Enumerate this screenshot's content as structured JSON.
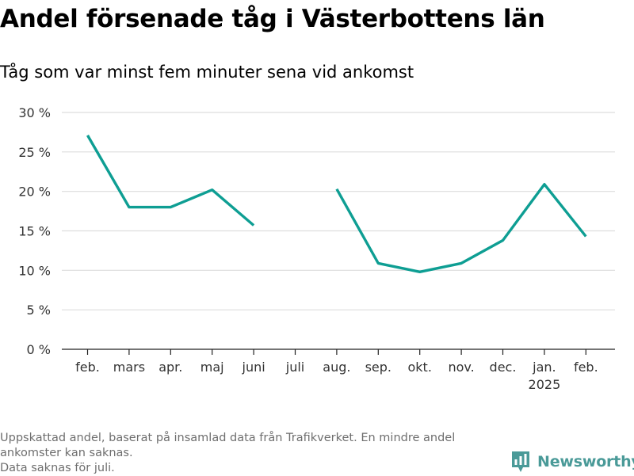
{
  "title": "Andel försenade tåg i Västerbottens län",
  "subtitle": "Tåg som var minst fem minuter sena vid ankomst",
  "footnote": {
    "line1": "Uppskattad andel, baserat på insamlad data från Trafikverket. En mindre andel",
    "line2": "ankomster kan saknas.",
    "line3": "Data saknas för juli."
  },
  "brand": {
    "name": "Newsworthy",
    "icon": "newsworthy-logo-icon",
    "color": "#4a9a98"
  },
  "chart_data": {
    "type": "line",
    "categories": [
      "feb.",
      "mars",
      "apr.",
      "maj",
      "juni",
      "juli",
      "aug.",
      "sep.",
      "okt.",
      "nov.",
      "dec.",
      "jan.",
      "feb."
    ],
    "category_sublabels": [
      "",
      "",
      "",
      "",
      "",
      "",
      "",
      "",
      "",
      "",
      "",
      "2025",
      ""
    ],
    "series": [
      {
        "values": [
          27.1,
          18.0,
          18.0,
          20.2,
          15.7,
          null,
          20.3,
          10.9,
          9.8,
          10.9,
          13.8,
          20.9,
          14.3
        ]
      }
    ],
    "ylim": [
      0,
      30
    ],
    "yticks": [
      0,
      5,
      10,
      15,
      20,
      25,
      30
    ],
    "ytick_labels": [
      "0 %",
      "5 %",
      "10 %",
      "15 %",
      "20 %",
      "25 %",
      "30 %"
    ],
    "xlabel": "",
    "ylabel": "",
    "grid": true,
    "line_color": "#0e9e93",
    "grid_color": "#dddddd",
    "axis_color": "#222222"
  }
}
